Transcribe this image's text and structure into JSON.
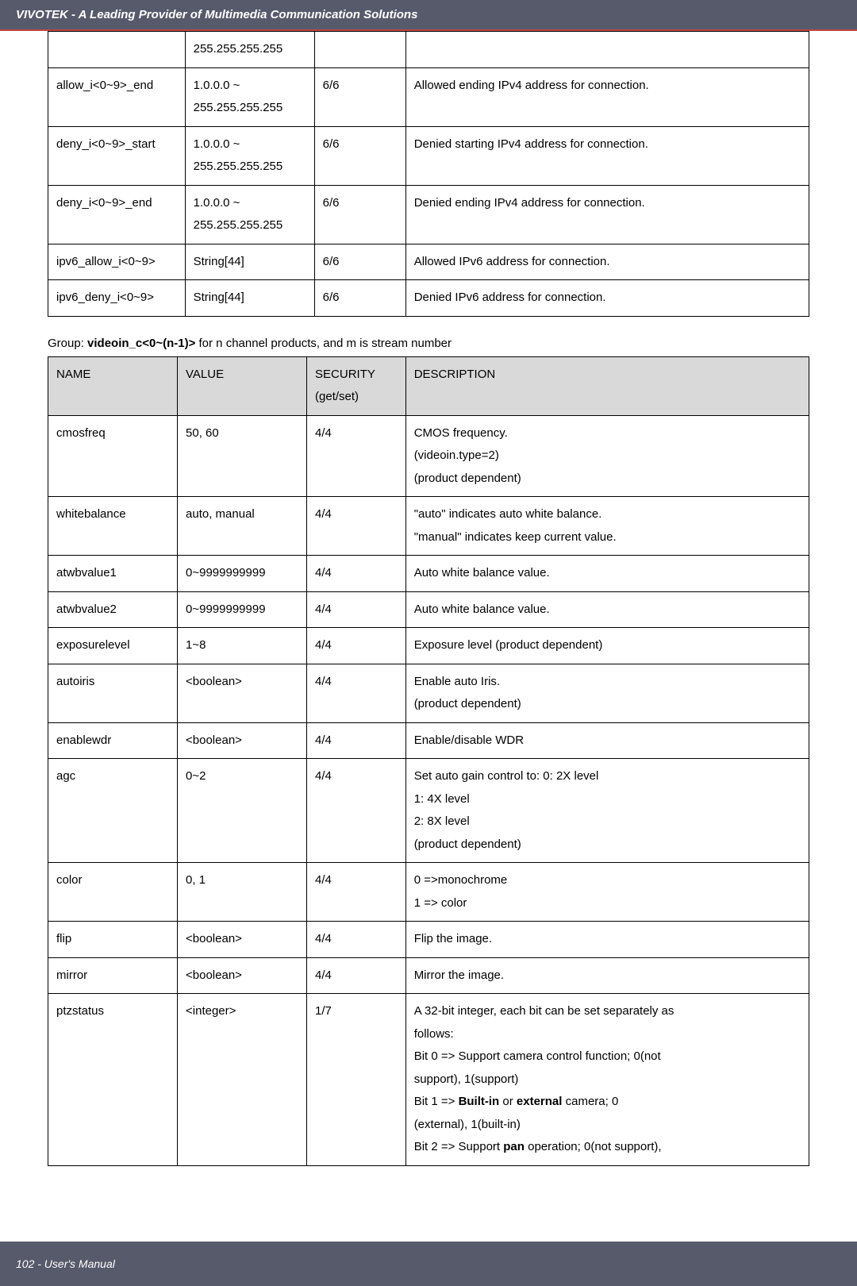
{
  "header": "VIVOTEK - A Leading Provider of Multimedia Communication Solutions",
  "footer": "102 - User's Manual",
  "table1": {
    "rows": [
      [
        "",
        "255.255.255.255",
        "",
        ""
      ],
      [
        "allow_i<0~9>_end",
        "1.0.0.0 ~\n255.255.255.255",
        "6/6",
        "Allowed ending IPv4 address for connection."
      ],
      [
        "deny_i<0~9>_start",
        "1.0.0.0 ~\n255.255.255.255",
        "6/6",
        "Denied starting IPv4 address for connection."
      ],
      [
        "deny_i<0~9>_end",
        "1.0.0.0 ~\n255.255.255.255",
        "6/6",
        "Denied ending IPv4 address for connection."
      ],
      [
        "ipv6_allow_i<0~9>",
        "String[44]",
        "6/6",
        "Allowed IPv6 address for connection."
      ],
      [
        "ipv6_deny_i<0~9>",
        "String[44]",
        "6/6",
        "Denied IPv6 address for connection."
      ]
    ]
  },
  "group_text_prefix": "Group: ",
  "group_text_bold": "videoin_c<0~(n-1)>",
  "group_text_suffix": " for n channel products, and m is stream number",
  "table2": {
    "headers": [
      "NAME",
      "VALUE",
      "SECURITY\n(get/set)",
      "DESCRIPTION"
    ],
    "rows": [
      [
        "cmosfreq",
        "50, 60",
        "4/4",
        "CMOS frequency.\n(videoin.type=2)\n(product dependent)"
      ],
      [
        "whitebalance",
        "auto, manual",
        "4/4",
        "\"auto\" indicates auto white balance.\n\"manual\" indicates keep current value."
      ],
      [
        "atwbvalue1",
        "0~9999999999",
        "4/4",
        "Auto white balance value."
      ],
      [
        "atwbvalue2",
        "0~9999999999",
        "4/4",
        "Auto white balance value."
      ],
      [
        "exposurelevel",
        "1~8",
        "4/4",
        "Exposure level (product dependent)"
      ],
      [
        "autoiris",
        "<boolean>",
        "4/4",
        "Enable auto Iris.\n(product dependent)"
      ],
      [
        "enablewdr",
        "<boolean>",
        "4/4",
        "Enable/disable WDR"
      ],
      [
        "agc",
        "0~2",
        "4/4",
        "Set auto gain control to: 0: 2X level\n1: 4X level\n2: 8X level\n(product dependent)"
      ],
      [
        "color",
        "0, 1",
        "4/4",
        "0 =>monochrome\n1 => color"
      ],
      [
        "flip",
        "<boolean>",
        "4/4",
        "Flip the image."
      ],
      [
        "mirror",
        "<boolean>",
        "4/4",
        "Mirror the image."
      ],
      [
        "ptzstatus",
        "<integer>",
        "1/7",
        "__PTZSTATUS__"
      ]
    ]
  },
  "ptz_lines": [
    {
      "text": "A 32-bit integer, each bit can be set separately as",
      "parts": null
    },
    {
      "text": "follows:",
      "parts": null
    },
    {
      "text": "Bit 0 => Support camera control function; 0(not",
      "parts": null
    },
    {
      "text": "support), 1(support)",
      "parts": null
    },
    {
      "text": null,
      "parts": [
        "Bit 1 => ",
        "Built-in",
        " or ",
        "external",
        " camera; 0"
      ]
    },
    {
      "text": "(external), 1(built-in)",
      "parts": null
    },
    {
      "text": null,
      "parts": [
        "Bit 2 => Support ",
        "pan",
        " operation; 0(not support),"
      ]
    }
  ]
}
